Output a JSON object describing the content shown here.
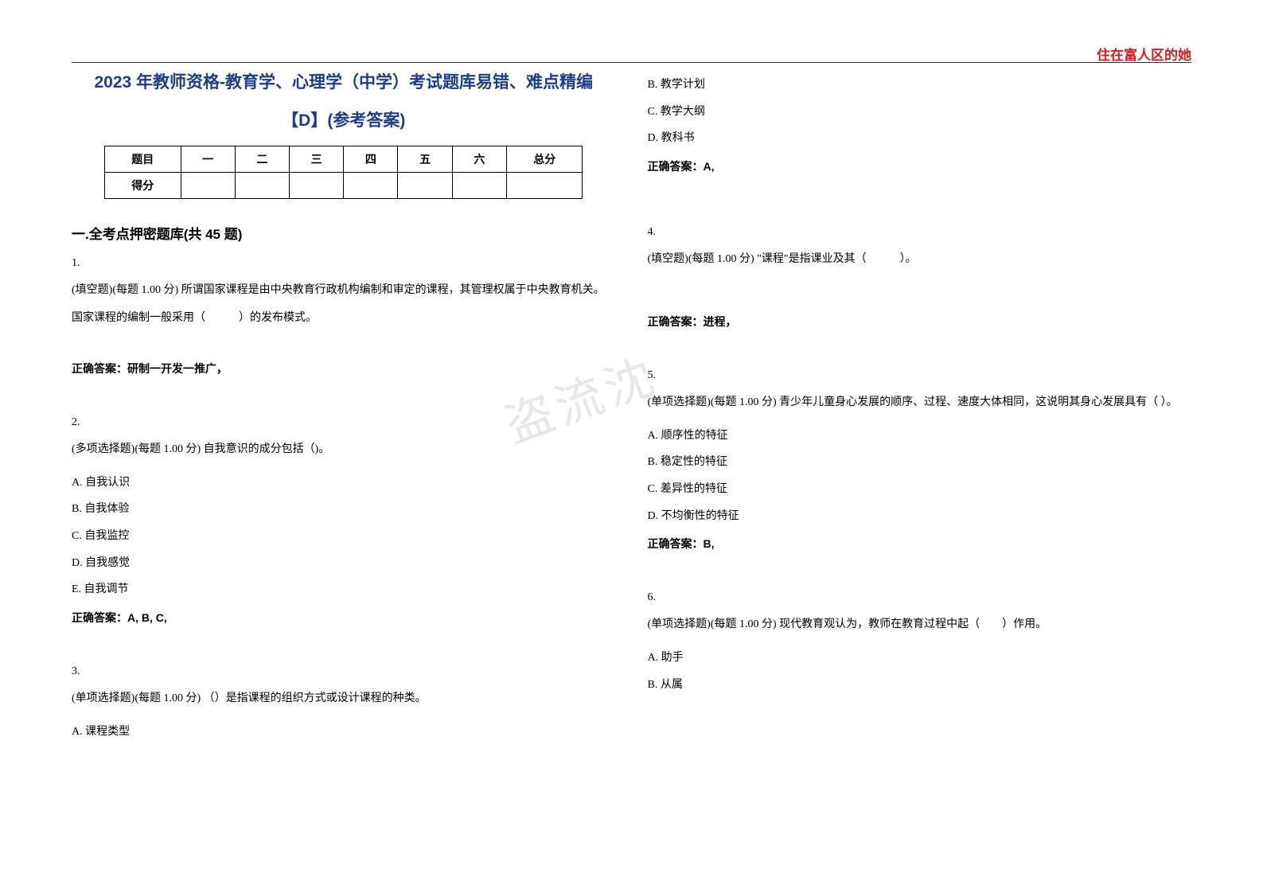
{
  "header_mark": "住在富人区的她",
  "title": "2023 年教师资格-教育学、心理学（中学）考试题库易错、难点精编",
  "subtitle": "【D】(参考答案)",
  "score_table": {
    "headers": [
      "题目",
      "一",
      "二",
      "三",
      "四",
      "五",
      "六",
      "总分"
    ],
    "row_label": "得分"
  },
  "section_title": "一.全考点押密题库(共 45 题)",
  "watermark": "盗流沈",
  "left_column": {
    "q1": {
      "num": "1.",
      "text": "(填空题)(每题 1.00 分) 所谓国家课程是由中央教育行政机构编制和审定的课程，其管理权属于中央教育机关。国家课程的编制一般采用（　　　）的发布模式。",
      "answer": "正确答案：研制一开发一推广，"
    },
    "q2": {
      "num": "2.",
      "text": "(多项选择题)(每题 1.00 分) 自我意识的成分包括（)。",
      "options": {
        "a": "A. 自我认识",
        "b": "B. 自我体验",
        "c": "C. 自我监控",
        "d": "D. 自我感觉",
        "e": "E. 自我调节"
      },
      "answer": "正确答案：A, B, C,"
    },
    "q3": {
      "num": "3.",
      "text": "(单项选择题)(每题 1.00 分) （）是指课程的组织方式或设计课程的种类。",
      "options": {
        "a": "A. 课程类型"
      }
    }
  },
  "right_column": {
    "q3_cont": {
      "options": {
        "b": "B. 教学计划",
        "c": "C. 教学大纲",
        "d": "D. 教科书"
      },
      "answer": "正确答案：A,"
    },
    "q4": {
      "num": "4.",
      "text": "(填空题)(每题 1.00 分)  \"课程\"是指课业及其（　　　）。",
      "answer": "正确答案：进程，"
    },
    "q5": {
      "num": "5.",
      "text": "(单项选择题)(每题 1.00 分) 青少年儿童身心发展的顺序、过程、速度大体相同，这说明其身心发展具有（ ）。",
      "options": {
        "a": "A. 顺序性的特征",
        "b": "B. 稳定性的特征",
        "c": "C. 差异性的特征",
        "d": "D. 不均衡性的特征"
      },
      "answer": "正确答案：B,"
    },
    "q6": {
      "num": "6.",
      "text": "(单项选择题)(每题 1.00 分) 现代教育观认为，教师在教育过程中起（　　）作用。",
      "options": {
        "a": "A. 助手",
        "b": "B. 从属"
      }
    }
  }
}
